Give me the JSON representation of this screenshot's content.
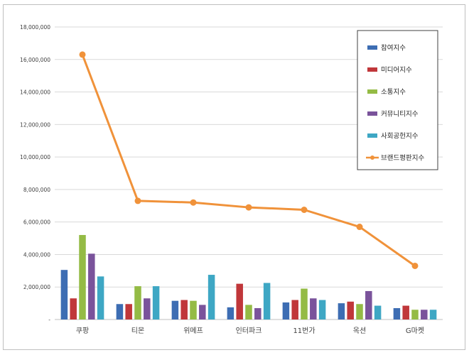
{
  "chart_data": {
    "type": "bar",
    "categories": [
      "쿠팡",
      "티몬",
      "위메프",
      "인터파크",
      "11번가",
      "옥션",
      "G마켓"
    ],
    "ylim": [
      0,
      18000000
    ],
    "yticks": [
      0,
      2000000,
      4000000,
      6000000,
      8000000,
      10000000,
      12000000,
      14000000,
      16000000,
      18000000
    ],
    "ytick_labels": [
      "-",
      "2,000,000",
      "4,000,000",
      "6,000,000",
      "8,000,000",
      "10,000,000",
      "12,000,000",
      "14,000,000",
      "16,000,000",
      "18,000,000"
    ],
    "grid": true,
    "legend_position": "top-right",
    "series": [
      {
        "name": "참여지수",
        "kind": "bar",
        "color": "#3d6db3",
        "values": [
          3050000,
          950000,
          1150000,
          750000,
          1050000,
          1000000,
          700000
        ]
      },
      {
        "name": "미디어지수",
        "kind": "bar",
        "color": "#c0373a",
        "values": [
          1300000,
          950000,
          1200000,
          2200000,
          1200000,
          1100000,
          850000
        ]
      },
      {
        "name": "소통지수",
        "kind": "bar",
        "color": "#94bb45",
        "values": [
          5200000,
          2050000,
          1150000,
          900000,
          1900000,
          950000,
          600000
        ]
      },
      {
        "name": "커뮤니티지수",
        "kind": "bar",
        "color": "#7a539b",
        "values": [
          4050000,
          1300000,
          900000,
          700000,
          1300000,
          1750000,
          600000
        ]
      },
      {
        "name": "사회공헌지수",
        "kind": "bar",
        "color": "#3ea7c4",
        "values": [
          2650000,
          2050000,
          2750000,
          2250000,
          1200000,
          850000,
          600000
        ]
      },
      {
        "name": "브랜드평판지수",
        "kind": "line",
        "color": "#f0923a",
        "values": [
          16300000,
          7300000,
          7200000,
          6900000,
          6750000,
          5700000,
          3300000
        ]
      }
    ]
  }
}
